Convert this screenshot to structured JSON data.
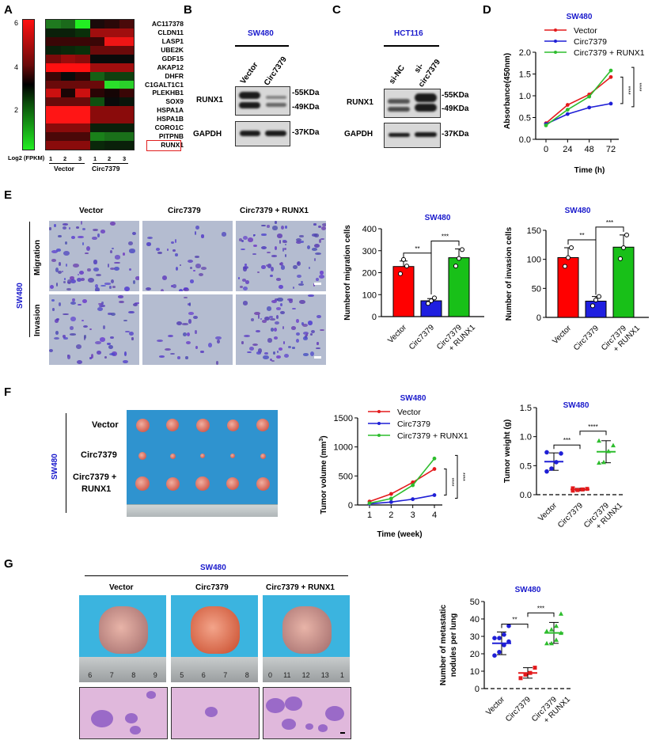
{
  "panels": {
    "A": {
      "label": "A",
      "colorbar": {
        "ticks": [
          "6",
          "4",
          "2"
        ],
        "title": "Log2 (FPKM)"
      },
      "columns": [
        "1",
        "2",
        "3",
        "1",
        "2",
        "3"
      ],
      "groups": [
        "Vector",
        "Circ7379"
      ],
      "genes": [
        "AC117378",
        "CLDN11",
        "LASP1",
        "UBE2K",
        "GDF15",
        "AKAP12",
        "DHFR",
        "C1GALT1C1",
        "PLEKHB1",
        "SOX9",
        "HSPA1A",
        "HSPA1B",
        "CORO1C",
        "PITPNB",
        "RUNX1"
      ],
      "highlighted_gene": "RUNX1",
      "heatmap": [
        [
          "#1f7a1f",
          "#1b6a1b",
          "#22ee22",
          "#1a0a0a",
          "#2a0808",
          "#4a0a0a"
        ],
        [
          "#0a200a",
          "#0a200a",
          "#0a300a",
          "#a00e0e",
          "#a00e0e",
          "#a00e0e"
        ],
        [
          "#3a0606",
          "#3a0606",
          "#3a0606",
          "#3a0606",
          "#ee1515",
          "#ee1515"
        ],
        [
          "#0a200a",
          "#0a280a",
          "#0a300a",
          "#6a0a0a",
          "#6a0a0a",
          "#6a0a0a"
        ],
        [
          "#7a0a0a",
          "#9a0c0c",
          "#8a0b0b",
          "#0a0a0a",
          "#0a0a0a",
          "#0a0a0a"
        ],
        [
          "#ff1010",
          "#ff1010",
          "#ff1010",
          "#a00e0e",
          "#a00e0e",
          "#a00e0e"
        ],
        [
          "#3a0606",
          "#0a0a0a",
          "#2a0505",
          "#156015",
          "#0f400f",
          "#0f400f"
        ],
        [
          "#6a0a0a",
          "#6a0a0a",
          "#6a0a0a",
          "#6a0a0a",
          "#2ae02a",
          "#2ad02a"
        ],
        [
          "#cc1010",
          "#1a0505",
          "#cc1010",
          "#2a0505",
          "#150505",
          "#3a0606"
        ],
        [
          "#6a0a0a",
          "#6a0a0a",
          "#6a0a0a",
          "#105010",
          "#0a0a0a",
          "#0a150a"
        ],
        [
          "#ff1515",
          "#ff1515",
          "#ff1515",
          "#8a0b0b",
          "#8a0b0b",
          "#8a0b0b"
        ],
        [
          "#ff1515",
          "#ff1515",
          "#ff1515",
          "#8a0b0b",
          "#8a0b0b",
          "#8a0b0b"
        ],
        [
          "#8a0b0b",
          "#8a0b0b",
          "#8a0b0b",
          "#0a200a",
          "#0a200a",
          "#0a200a"
        ],
        [
          "#4a0808",
          "#4a0808",
          "#4a0808",
          "#1a801a",
          "#1a701a",
          "#1a701a"
        ],
        [
          "#8a0b0b",
          "#8a0b0b",
          "#8a0b0b",
          "#0a280a",
          "#0a200a",
          "#0a200a"
        ]
      ]
    },
    "B": {
      "label": "B",
      "cell_line": "SW480",
      "lanes": [
        "Vector",
        "Circ7379"
      ],
      "rows": [
        "RUNX1",
        "GAPDH"
      ],
      "markers": [
        "-55KDa",
        "-49KDa",
        "-37KDa"
      ]
    },
    "C": {
      "label": "C",
      "cell_line": "HCT116",
      "lanes": [
        "si-NC",
        "si-",
        "circ7379"
      ],
      "rows": [
        "RUNX1",
        "GAPDH"
      ],
      "markers": [
        "-55KDa",
        "-49KDa",
        "-37KDa"
      ]
    },
    "D": {
      "label": "D"
    },
    "E": {
      "label": "E",
      "cell_line": "SW480",
      "columns": [
        "Vector",
        "Circ7379",
        "Circ7379 + RUNX1"
      ],
      "rows": [
        "Migration",
        "Invasion"
      ]
    },
    "F": {
      "label": "F",
      "cell_line": "SW480",
      "rows": [
        "Vector",
        "Circ7379",
        "Circ7379 +",
        "RUNX1"
      ]
    },
    "G": {
      "label": "G",
      "cell_line": "SW480",
      "columns": [
        "Vector",
        "Circ7379",
        "Circ7379 + RUNX1"
      ],
      "rulers": [
        [
          "6",
          "7",
          "8",
          "9"
        ],
        [
          "5",
          "6",
          "7",
          "8"
        ],
        [
          "0",
          "11",
          "12",
          "13",
          "1"
        ]
      ]
    }
  },
  "chart_data": [
    {
      "id": "D",
      "type": "line",
      "title": "SW480",
      "xlabel": "Time (h)",
      "ylabel": "Absorbance(450nm)",
      "x": [
        0,
        24,
        48,
        72
      ],
      "xticks": [
        "0",
        "24",
        "48",
        "72"
      ],
      "yticks": [
        "0.0",
        "0.5",
        "1.0",
        "1.5",
        "2.0"
      ],
      "ylim": [
        0,
        2.0
      ],
      "series": [
        {
          "name": "Vector",
          "color": "#e41a1c",
          "values": [
            0.37,
            0.79,
            1.03,
            1.43
          ]
        },
        {
          "name": "Circ7379",
          "color": "#1f1fd6",
          "values": [
            0.35,
            0.58,
            0.73,
            0.82
          ]
        },
        {
          "name": "Circ7379 + RUNX1",
          "color": "#2ebd2e",
          "values": [
            0.32,
            0.68,
            0.98,
            1.58
          ]
        }
      ],
      "annotations": [
        "****",
        "****"
      ]
    },
    {
      "id": "E-migration",
      "type": "bar",
      "title": "SW480",
      "ylabel": "Numberof migration cells",
      "categories": [
        "Vector",
        "Circ7379",
        "Circ7379 + RUNX1"
      ],
      "values": [
        228,
        72,
        268
      ],
      "errors": [
        25,
        10,
        40
      ],
      "points": [
        [
          195,
          260,
          230
        ],
        [
          60,
          72,
          85
        ],
        [
          230,
          265,
          305
        ]
      ],
      "colors": [
        "#ff0000",
        "#1f1fe0",
        "#18c018"
      ],
      "yticks": [
        "0",
        "100",
        "200",
        "300",
        "400"
      ],
      "ylim": [
        0,
        400
      ],
      "annotations": [
        "**",
        "***"
      ]
    },
    {
      "id": "E-invasion",
      "type": "bar",
      "title": "SW480",
      "ylabel": "Number of invasion cells",
      "categories": [
        "Vector",
        "Circ7379",
        "Circ7379 + RUNX1"
      ],
      "values": [
        103,
        28,
        121
      ],
      "errors": [
        17,
        8,
        21
      ],
      "points": [
        [
          88,
          103,
          120
        ],
        [
          20,
          30,
          36
        ],
        [
          101,
          120,
          142
        ]
      ],
      "colors": [
        "#ff0000",
        "#1f1fe0",
        "#18c018"
      ],
      "yticks": [
        "0",
        "50",
        "100",
        "150"
      ],
      "ylim": [
        0,
        150
      ],
      "annotations": [
        "**",
        "***"
      ]
    },
    {
      "id": "F-volume",
      "type": "line",
      "title": "SW480",
      "xlabel": "Time (week)",
      "ylabel": "Tumor volume (mm3)",
      "x": [
        1,
        2,
        3,
        4
      ],
      "xticks": [
        "1",
        "2",
        "3",
        "4"
      ],
      "yticks": [
        "0",
        "500",
        "1000",
        "1500"
      ],
      "ylim": [
        0,
        1500
      ],
      "series": [
        {
          "name": "Vector",
          "color": "#e41a1c",
          "values": [
            60,
            190,
            390,
            620
          ]
        },
        {
          "name": "Circ7379",
          "color": "#1f1fd6",
          "values": [
            20,
            50,
            100,
            170
          ]
        },
        {
          "name": "Circ7379 + RUNX1",
          "color": "#2ebd2e",
          "values": [
            30,
            110,
            340,
            800
          ]
        }
      ],
      "annotations": [
        "****",
        "****"
      ]
    },
    {
      "id": "F-weight",
      "type": "scatter",
      "title": "SW480",
      "ylabel": "Tumor weight (g)",
      "categories": [
        "Vector",
        "Circ7379",
        "Circ7379 + RUNX1"
      ],
      "means": [
        0.57,
        0.09,
        0.74
      ],
      "sd": [
        0.15,
        0.02,
        0.19
      ],
      "points": [
        [
          0.4,
          0.45,
          0.56,
          0.71,
          0.73
        ],
        [
          0.07,
          0.08,
          0.09,
          0.1,
          0.11
        ],
        [
          0.55,
          0.56,
          0.75,
          0.85,
          0.93
        ]
      ],
      "colors": [
        "#1f1fd6",
        "#e41a1c",
        "#2ebd2e"
      ],
      "yticks": [
        "0.0",
        "0.5",
        "1.0",
        "1.5"
      ],
      "ylim": [
        0,
        1.5
      ],
      "annotations": [
        "***",
        "****"
      ]
    },
    {
      "id": "G-nodules",
      "type": "scatter",
      "title": "SW480",
      "ylabel": "Number of metastatic nodules per lung",
      "categories": [
        "Vector",
        "Circ7379",
        "Circ7379 + RUNX1"
      ],
      "means": [
        26,
        9,
        32
      ],
      "sd": [
        6.5,
        3,
        6
      ],
      "points": [
        [
          19,
          21,
          25,
          27,
          29,
          29,
          31,
          36
        ],
        [
          6,
          8,
          9,
          12
        ],
        [
          26,
          26,
          28,
          32,
          33,
          34,
          36,
          43
        ]
      ],
      "colors": [
        "#1f1fd6",
        "#e41a1c",
        "#2ebd2e"
      ],
      "yticks": [
        "0",
        "10",
        "20",
        "30",
        "40",
        "50"
      ],
      "ylim": [
        0,
        50
      ],
      "annotations": [
        "**",
        "***"
      ]
    }
  ]
}
